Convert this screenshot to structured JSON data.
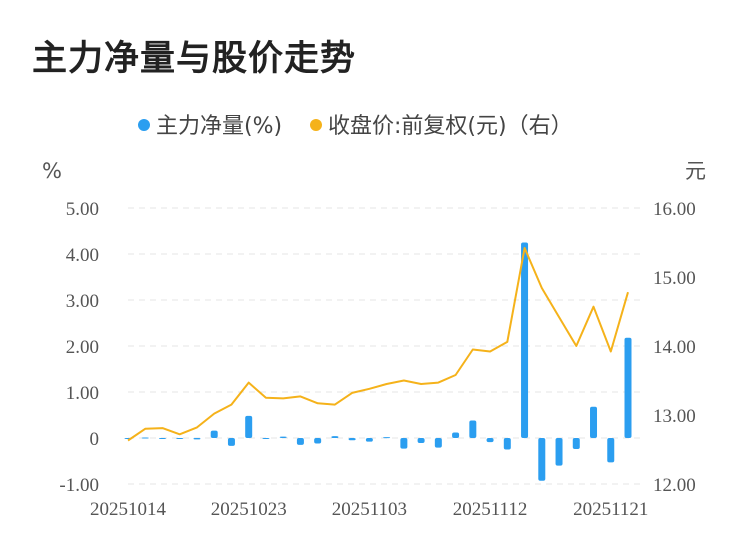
{
  "chart_data": {
    "type": "bar",
    "title": "主力净量与股价走势",
    "legend": [
      {
        "label": "主力净量(%)",
        "color": "#2b9ef0"
      },
      {
        "label": "收盘价:前复权(元)（右）",
        "color": "#f5b21a"
      }
    ],
    "left_unit": "%",
    "right_unit": "元",
    "left_ticks": [
      "5.00",
      "4.00",
      "3.00",
      "2.00",
      "1.00",
      "0",
      "-1.00"
    ],
    "right_ticks": [
      "16.00",
      "15.00",
      "14.00",
      "13.00",
      "12.00"
    ],
    "ylim_left": [
      -1,
      5
    ],
    "ylim_right": [
      12,
      16
    ],
    "x_tick_labels": [
      "20251014",
      "20251023",
      "20251103",
      "20251112",
      "20251121"
    ],
    "x_tick_indices": [
      0,
      7,
      14,
      21,
      28
    ],
    "series": [
      {
        "name": "主力净量(%)",
        "type": "bar",
        "axis": "left",
        "color": "#2b9ef0",
        "values": [
          -0.02,
          0.01,
          -0.02,
          0.0,
          -0.03,
          0.16,
          -0.17,
          0.48,
          -0.01,
          0.03,
          -0.15,
          -0.12,
          0.04,
          -0.05,
          -0.08,
          0.02,
          -0.23,
          -0.11,
          -0.21,
          0.12,
          0.38,
          -0.09,
          -0.25,
          4.25,
          -0.93,
          -0.6,
          -0.24,
          0.68,
          -0.53,
          2.18
        ]
      },
      {
        "name": "收盘价:前复权(元)（右）",
        "type": "line",
        "axis": "right",
        "color": "#f5b21a",
        "values": [
          12.63,
          12.8,
          12.81,
          12.72,
          12.82,
          13.02,
          13.15,
          13.47,
          13.25,
          13.24,
          13.27,
          13.17,
          13.15,
          13.32,
          13.38,
          13.45,
          13.5,
          13.45,
          13.47,
          13.58,
          13.95,
          13.92,
          14.06,
          15.42,
          14.84,
          14.42,
          14.0,
          14.57,
          13.92,
          14.78
        ]
      }
    ]
  }
}
